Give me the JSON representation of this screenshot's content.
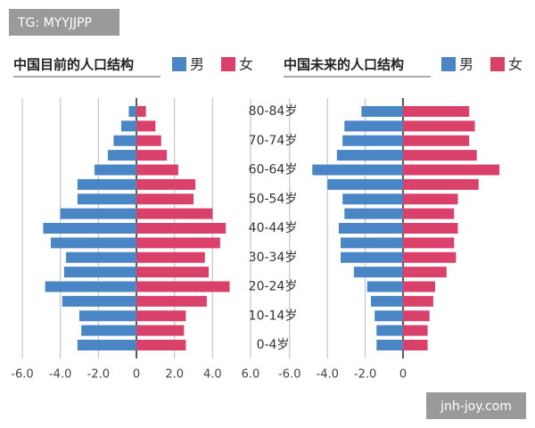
{
  "chart_data": [
    {
      "type": "bar",
      "orientation": "horizontal",
      "title": "中国目前的人口结构",
      "categories": [
        "0-4岁",
        null,
        "10-14岁",
        null,
        "20-24岁",
        null,
        "30-34岁",
        null,
        "40-44岁",
        null,
        "50-54岁",
        null,
        "60-64岁",
        null,
        "70-74岁",
        null,
        "80-84岁"
      ],
      "series": [
        {
          "name": "男",
          "color": "#4a86c5",
          "values": [
            -3.1,
            -2.9,
            -3.0,
            -3.9,
            -4.8,
            -3.8,
            -3.7,
            -4.5,
            -4.9,
            -4.0,
            -3.1,
            -3.1,
            -2.2,
            -1.5,
            -1.2,
            -0.8,
            -0.4
          ]
        },
        {
          "name": "女",
          "color": "#d9416b",
          "values": [
            2.6,
            2.5,
            2.6,
            3.7,
            4.9,
            3.8,
            3.6,
            4.4,
            4.7,
            4.0,
            3.0,
            3.1,
            2.2,
            1.6,
            1.3,
            1.0,
            0.5
          ]
        }
      ],
      "xlim": [
        -6.0,
        6.0
      ],
      "xticks": [
        {
          "value": -6.0,
          "label": "-6.0"
        },
        {
          "value": -4.0,
          "label": "-4.0"
        },
        {
          "value": -2.0,
          "label": "-2.0"
        },
        0,
        {
          "value": 2.0,
          "label": "2.0"
        },
        {
          "value": 4.0,
          "label": "4.0"
        },
        {
          "value": 6.0,
          "label": "6.0"
        }
      ],
      "grid": true
    },
    {
      "type": "bar",
      "orientation": "horizontal",
      "title": "中国未来的人口结构",
      "series": [
        {
          "name": "男",
          "color": "#4a86c5",
          "values": [
            -1.4,
            -1.4,
            -1.5,
            -1.7,
            -1.9,
            -2.6,
            -3.3,
            -3.3,
            -3.4,
            -3.1,
            -3.2,
            -4.0,
            -4.8,
            -3.5,
            -3.2,
            -3.1,
            -2.2
          ]
        },
        {
          "name": "女",
          "color": "#d9416b",
          "values": [
            1.3,
            1.3,
            1.4,
            1.6,
            1.7,
            2.3,
            2.8,
            2.7,
            2.9,
            2.7,
            2.9,
            4.0,
            5.1,
            3.9,
            3.5,
            3.8,
            3.5
          ]
        }
      ],
      "xlim": [
        -6.0,
        6.0
      ],
      "xticks": [
        {
          "value": -6.0,
          "label": "-6.0"
        },
        {
          "value": -4.0,
          "label": "-4.0"
        },
        {
          "value": -2.0,
          "label": "-2.0"
        },
        0
      ],
      "grid": true
    }
  ],
  "watermarks": [
    "TG: MYYJJPP",
    "jnh-joy.com"
  ]
}
